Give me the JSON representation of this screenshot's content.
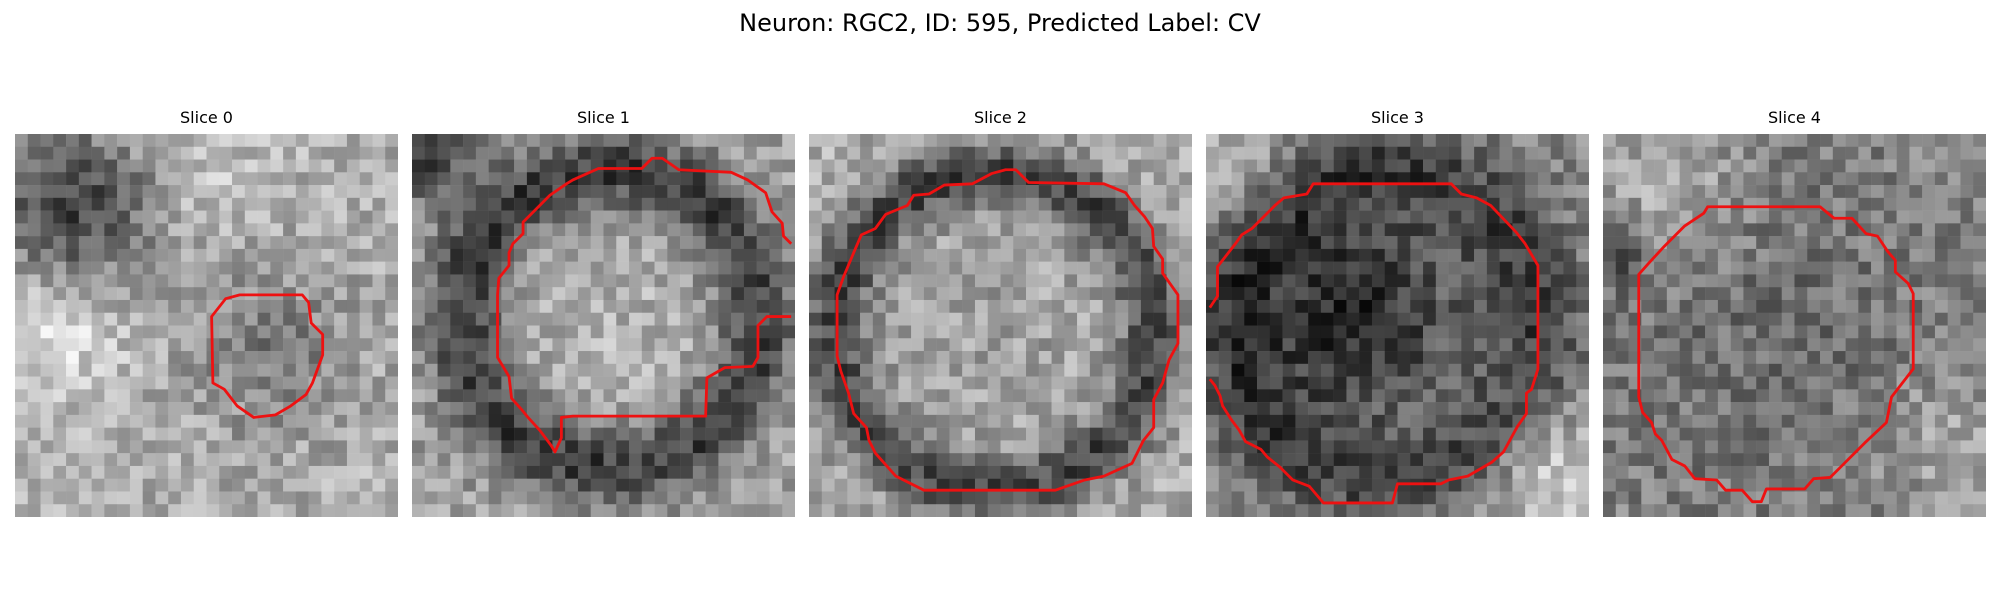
{
  "figure": {
    "title": "Neuron: RGC2, ID: 595, Predicted Label: CV"
  },
  "panels": [
    {
      "title": "Slice 0"
    },
    {
      "title": "Slice 1"
    },
    {
      "title": "Slice 2"
    },
    {
      "title": "Slice 3"
    },
    {
      "title": "Slice 4"
    }
  ],
  "contour_color": "#ee1111"
}
